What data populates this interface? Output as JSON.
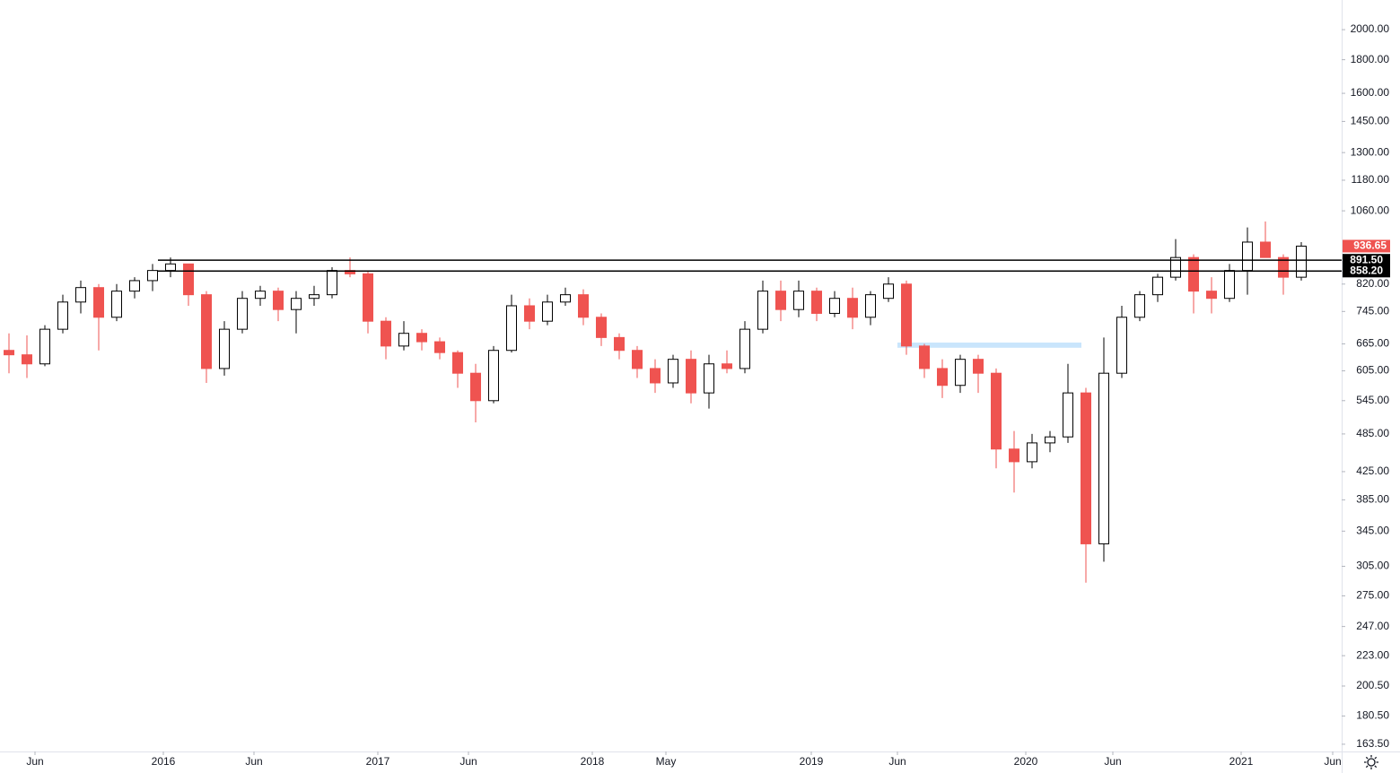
{
  "chart_data": {
    "type": "candlestick",
    "log_scale": true,
    "x": [
      0,
      1,
      2,
      3,
      4,
      5,
      6,
      7,
      8,
      9,
      10,
      11,
      12,
      13,
      14,
      15,
      16,
      17,
      18,
      19,
      20,
      21,
      22,
      23,
      24,
      25,
      26,
      27,
      28,
      29,
      30,
      31,
      32,
      33,
      34,
      35,
      36,
      37,
      38,
      39,
      40,
      41,
      42,
      43,
      44,
      45,
      46,
      47,
      48,
      49,
      50,
      51,
      52,
      53,
      54,
      55,
      56,
      57,
      58,
      59,
      60,
      61,
      62,
      63,
      64,
      65,
      66,
      67,
      68,
      69,
      70,
      71,
      72
    ],
    "open": [
      650,
      640,
      620,
      700,
      770,
      810,
      730,
      800,
      830,
      860,
      880,
      790,
      610,
      700,
      780,
      800,
      750,
      780,
      790,
      860,
      850,
      720,
      660,
      690,
      670,
      645,
      600,
      545,
      650,
      760,
      720,
      770,
      790,
      730,
      680,
      650,
      610,
      580,
      630,
      560,
      620,
      610,
      700,
      800,
      750,
      800,
      740,
      780,
      730,
      780,
      820,
      660,
      610,
      575,
      630,
      600,
      460,
      440,
      470,
      480,
      560,
      330,
      600,
      730,
      790,
      840,
      900,
      800,
      780,
      860,
      950,
      900,
      840
    ],
    "high": [
      690,
      685,
      710,
      790,
      830,
      820,
      820,
      840,
      880,
      900,
      880,
      800,
      720,
      800,
      815,
      810,
      800,
      815,
      870,
      900,
      860,
      730,
      720,
      700,
      680,
      650,
      620,
      660,
      790,
      780,
      790,
      810,
      805,
      740,
      690,
      660,
      630,
      640,
      650,
      640,
      650,
      720,
      830,
      830,
      830,
      810,
      800,
      810,
      800,
      840,
      830,
      665,
      630,
      640,
      640,
      610,
      490,
      485,
      490,
      620,
      570,
      680,
      760,
      800,
      850,
      960,
      910,
      840,
      880,
      1000,
      1021,
      910,
      950
    ],
    "low": [
      600,
      590,
      615,
      690,
      740,
      650,
      720,
      780,
      800,
      840,
      760,
      580,
      595,
      690,
      760,
      720,
      690,
      760,
      780,
      840,
      690,
      630,
      650,
      650,
      630,
      570,
      505,
      540,
      645,
      700,
      710,
      760,
      710,
      660,
      630,
      590,
      560,
      570,
      540,
      530,
      600,
      600,
      690,
      720,
      730,
      720,
      730,
      700,
      710,
      770,
      640,
      590,
      550,
      560,
      560,
      430,
      395,
      430,
      455,
      470,
      288,
      310,
      590,
      720,
      770,
      830,
      740,
      740,
      770,
      790,
      920,
      790,
      830
    ],
    "close": [
      640,
      620,
      700,
      770,
      810,
      730,
      800,
      830,
      860,
      880,
      790,
      610,
      700,
      780,
      800,
      750,
      780,
      790,
      860,
      850,
      720,
      660,
      690,
      670,
      645,
      600,
      545,
      650,
      760,
      720,
      770,
      790,
      730,
      680,
      650,
      610,
      580,
      630,
      560,
      620,
      610,
      700,
      800,
      750,
      800,
      740,
      780,
      730,
      790,
      820,
      660,
      610,
      575,
      630,
      600,
      460,
      440,
      470,
      480,
      560,
      330,
      600,
      730,
      790,
      840,
      900,
      800,
      780,
      860,
      950,
      900,
      840,
      936.65
    ],
    "up_color": "#ffffff",
    "down_color": "#ef5350",
    "border_color": "#000000",
    "last_price": {
      "value": 936.65,
      "label": "936.65"
    },
    "last_price_color": "#ef5350",
    "levels": [
      {
        "value": 891.5,
        "label": "891.50",
        "start": 8.3
      },
      {
        "value": 858.2,
        "label": "858.20",
        "start": 8.3
      }
    ],
    "zone": {
      "low": 656,
      "high": 668,
      "start": 49.5,
      "end": 59.75,
      "color": "#bbdefb"
    },
    "xlim": [
      -0.5,
      74.25
    ],
    "ylim": [
      159.4,
      2219
    ],
    "xticks": [
      {
        "value": 1.45,
        "label": "Jun"
      },
      {
        "value": 8.6,
        "label": "2016"
      },
      {
        "value": 13.65,
        "label": "Jun"
      },
      {
        "value": 20.55,
        "label": "2017"
      },
      {
        "value": 25.6,
        "label": "Jun"
      },
      {
        "value": 32.5,
        "label": "2018"
      },
      {
        "value": 36.6,
        "label": "May"
      },
      {
        "value": 44.7,
        "label": "2019"
      },
      {
        "value": 49.5,
        "label": "Jun"
      },
      {
        "value": 56.65,
        "label": "2020"
      },
      {
        "value": 61.5,
        "label": "Jun"
      },
      {
        "value": 68.65,
        "label": "2021"
      },
      {
        "value": 73.75,
        "label": "Jun"
      }
    ],
    "yticks": [
      {
        "value": 2000,
        "label": "2000.00"
      },
      {
        "value": 1800,
        "label": "1800.00"
      },
      {
        "value": 1600,
        "label": "1600.00"
      },
      {
        "value": 1450,
        "label": "1450.00"
      },
      {
        "value": 1300,
        "label": "1300.00"
      },
      {
        "value": 1180,
        "label": "1180.00"
      },
      {
        "value": 1060,
        "label": "1060.00"
      },
      {
        "value": 820,
        "label": "820.00"
      },
      {
        "value": 745,
        "label": "745.00"
      },
      {
        "value": 665,
        "label": "665.00"
      },
      {
        "value": 605,
        "label": "605.00"
      },
      {
        "value": 545,
        "label": "545.00"
      },
      {
        "value": 485,
        "label": "485.00"
      },
      {
        "value": 425,
        "label": "425.00"
      },
      {
        "value": 385,
        "label": "385.00"
      },
      {
        "value": 345,
        "label": "345.00"
      },
      {
        "value": 305,
        "label": "305.00"
      },
      {
        "value": 275,
        "label": "275.00"
      },
      {
        "value": 247,
        "label": "247.00"
      },
      {
        "value": 223,
        "label": "223.00"
      },
      {
        "value": 200.5,
        "label": "200.50"
      },
      {
        "value": 180.5,
        "label": "180.50"
      },
      {
        "value": 163.5,
        "label": "163.50"
      }
    ],
    "grid": false
  }
}
